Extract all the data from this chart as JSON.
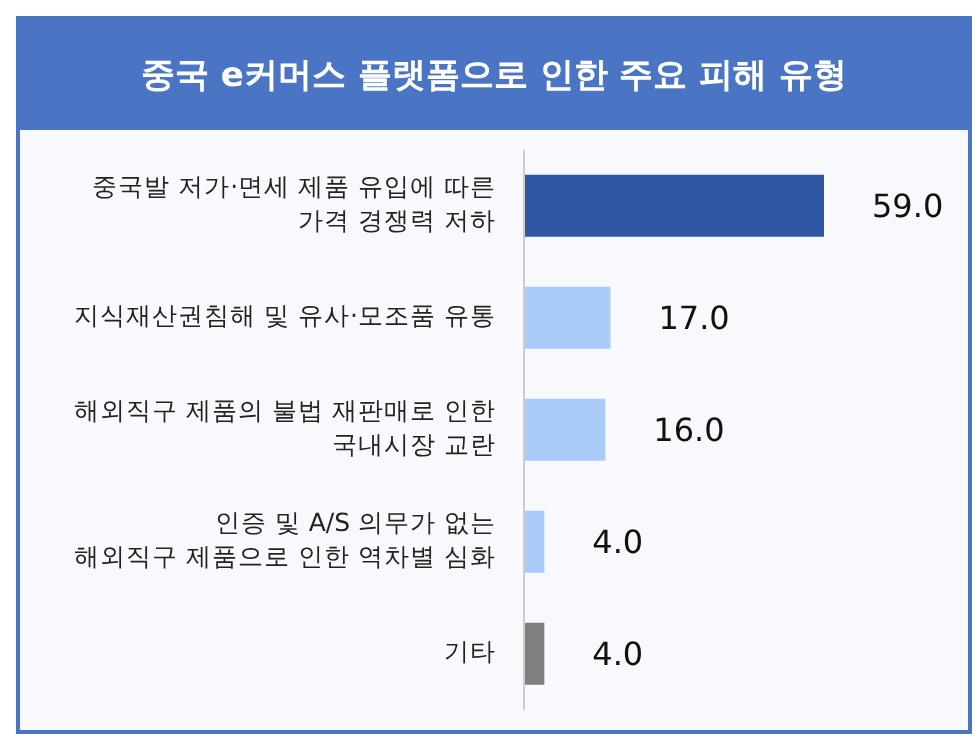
{
  "chart_data": {
    "type": "bar",
    "orientation": "horizontal",
    "title": "중국 e커머스 플랫폼으로 인한 주요 피해 유형",
    "categories": [
      "중국발 저가·면세 제품 유입에 따른\n가격 경쟁력 저하",
      "지식재산권침해 및 유사·모조품 유통",
      "해외직구 제품의 불법 재판매로 인한\n국내시장 교란",
      "인증 및 A/S 의무가 없는\n해외직구 제품으로 인한 역차별 심화",
      "기타"
    ],
    "values": [
      59,
      17,
      16,
      4,
      4
    ],
    "colors": [
      "#2f57a4",
      "#a8cbf7",
      "#a8cbf7",
      "#a8cbf7",
      "#7f7f7f"
    ],
    "value_labels": [
      "59.0",
      "17.0",
      "16.0",
      "4.0",
      "4.0"
    ]
  }
}
